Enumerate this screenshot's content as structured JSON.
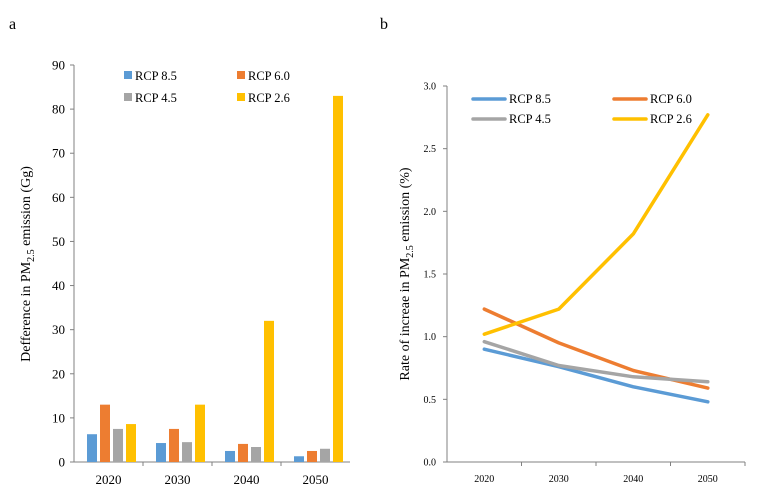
{
  "chart_data": [
    {
      "panel_label": "a",
      "type": "bar",
      "ylabel": "Defference in PM",
      "ylabel_sub": "2.5",
      "ylabel_suffix": " emission (Gg)",
      "ylim": [
        0,
        90
      ],
      "yticks": [
        "0",
        "10",
        "20",
        "30",
        "40",
        "50",
        "60",
        "70",
        "80",
        "90"
      ],
      "categories": [
        "2020",
        "2030",
        "2040",
        "2050"
      ],
      "legend_position": "top",
      "series": [
        {
          "name": "RCP 8.5",
          "color": "#5B9BD5",
          "values": [
            6.3,
            4.3,
            2.5,
            1.3
          ]
        },
        {
          "name": "RCP 6.0",
          "color": "#ED7D31",
          "values": [
            13,
            7.5,
            4.1,
            2.5
          ]
        },
        {
          "name": "RCP 4.5",
          "color": "#A5A5A5",
          "values": [
            7.5,
            4.5,
            3.4,
            3.0
          ]
        },
        {
          "name": "RCP 2.6",
          "color": "#FFC000",
          "values": [
            8.6,
            13,
            32,
            83
          ]
        }
      ]
    },
    {
      "panel_label": "b",
      "type": "line",
      "ylabel": "Rate of increae in PM",
      "ylabel_sub": "2.5",
      "ylabel_suffix": " emission (%)",
      "ylim": [
        0,
        3.0
      ],
      "yticks": [
        "0.0",
        "0.5",
        "1.0",
        "1.5",
        "2.0",
        "2.5",
        "3.0"
      ],
      "categories": [
        "2020",
        "2030",
        "2040",
        "2050"
      ],
      "legend_position": "top",
      "series": [
        {
          "name": "RCP 8.5",
          "color": "#5B9BD5",
          "values": [
            0.9,
            0.76,
            0.6,
            0.48
          ]
        },
        {
          "name": "RCP 6.0",
          "color": "#ED7D31",
          "values": [
            1.22,
            0.95,
            0.73,
            0.59
          ]
        },
        {
          "name": "RCP 4.5",
          "color": "#A5A5A5",
          "values": [
            0.96,
            0.77,
            0.68,
            0.64
          ]
        },
        {
          "name": "RCP 2.6",
          "color": "#FFC000",
          "values": [
            1.02,
            1.22,
            1.82,
            2.77
          ]
        }
      ]
    }
  ]
}
